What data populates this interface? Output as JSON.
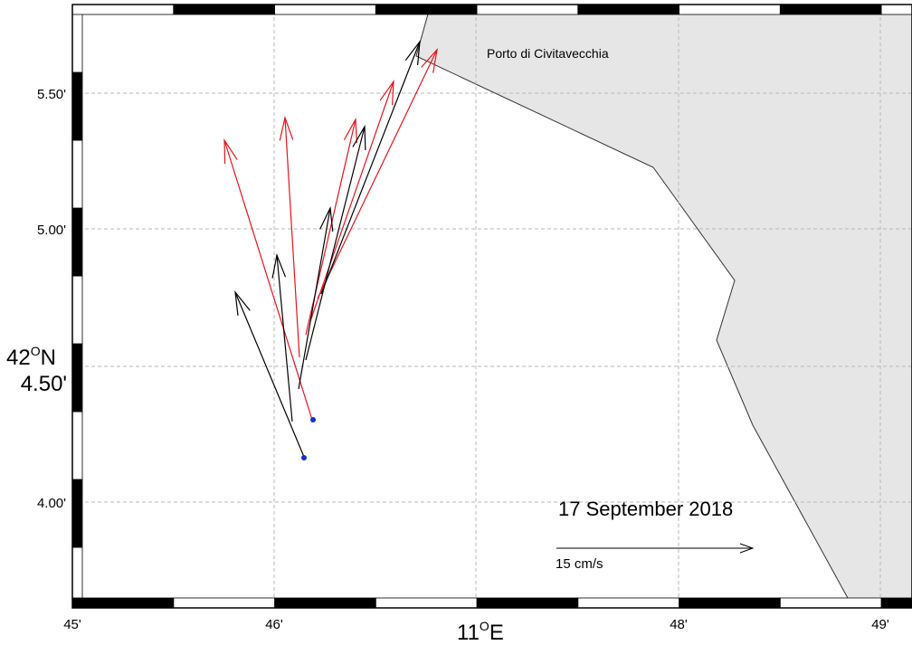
{
  "map": {
    "port_label": "Porto di Civitavecchia",
    "date_label": "17 September 2018",
    "scale_label": "15 cm/s",
    "lat_deg": "42",
    "lat_sup": "O",
    "lat_hem": "N",
    "lat_min": "4.50'",
    "lon_deg": "11",
    "lon_sup": "O",
    "lon_hem": "E",
    "x_ticks": [
      "45'",
      "46'",
      "48'",
      "49'"
    ],
    "y_ticks": [
      "5.50'",
      "5.00'",
      "4.00'"
    ],
    "colors": {
      "land": "#e6e6e6",
      "coast": "#333333",
      "trajectory_red": "#e8141c",
      "trajectory_black": "#000000",
      "release_point": "#1030d0"
    }
  }
}
